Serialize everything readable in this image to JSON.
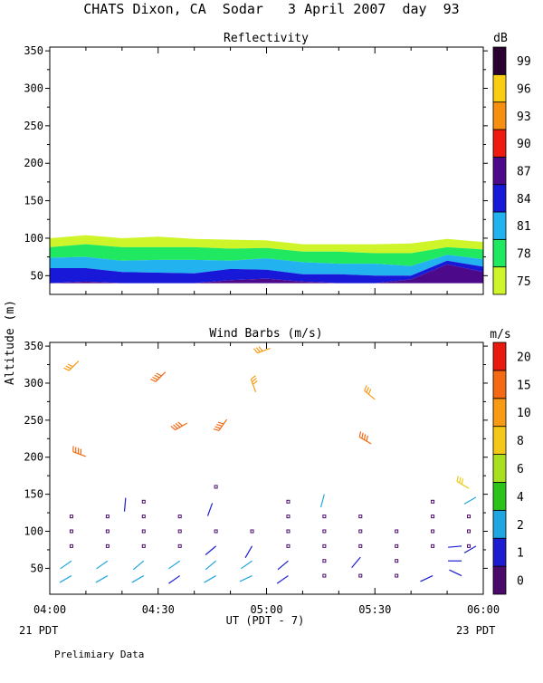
{
  "header": {
    "title": "CHATS Dixon, CA  Sodar   3 April 2007  day  93"
  },
  "footer": {
    "left_date": "21 PDT",
    "right_date": "23 PDT",
    "xlabel": "UT  (PDT - 7)",
    "note": "Prelimiary Data"
  },
  "shared_axis": {
    "ylabel": "Altitude (m)",
    "x_ticks": [
      "04:00",
      "04:30",
      "05:00",
      "05:30",
      "06:00"
    ],
    "x_range_min": [
      240,
      360
    ]
  },
  "colors": {
    "refl": [
      "#cdf52a",
      "#20e860",
      "#23b2f0",
      "#1818d8",
      "#4c0a8a",
      "#ee1c10",
      "#f78f10",
      "#f8cd14",
      "#2a0030"
    ],
    "wind": [
      "#4a0a6a",
      "#1c1cd0",
      "#1fa6e0",
      "#2cc21c",
      "#a8e020",
      "#f4c818",
      "#f89a14",
      "#f46a14",
      "#e81a10"
    ]
  },
  "chart_data": [
    {
      "type": "heatmap",
      "title": "Reflectivity",
      "ylabel": "Altitude (m)",
      "ylim": [
        25,
        355
      ],
      "yticks": [
        50,
        100,
        150,
        200,
        250,
        300,
        350
      ],
      "colorbar": {
        "unit": "dB",
        "labels": [
          "75",
          "78",
          "81",
          "84",
          "87",
          "90",
          "93",
          "96",
          "99"
        ]
      },
      "times_min": [
        240,
        250,
        260,
        270,
        280,
        290,
        300,
        310,
        320,
        330,
        340,
        350,
        360
      ],
      "bottom_altitude": 40,
      "layers": [
        {
          "dB": 75,
          "top": [
            100,
            104,
            100,
            102,
            99,
            98,
            97,
            92,
            92,
            92,
            93,
            99,
            95
          ]
        },
        {
          "dB": 78,
          "top": [
            88,
            92,
            88,
            88,
            88,
            86,
            87,
            82,
            82,
            80,
            80,
            88,
            85
          ]
        },
        {
          "dB": 81,
          "top": [
            74,
            75,
            70,
            71,
            71,
            70,
            73,
            68,
            66,
            66,
            63,
            78,
            72
          ]
        },
        {
          "dB": 84,
          "top": [
            60,
            60,
            55,
            54,
            53,
            59,
            58,
            52,
            52,
            50,
            50,
            70,
            62
          ]
        },
        {
          "dB": 87,
          "top": [
            40,
            42,
            40,
            40,
            40,
            44,
            46,
            42,
            40,
            40,
            45,
            65,
            55
          ]
        }
      ]
    },
    {
      "type": "scatter",
      "title": "Wind Barbs (m/s)",
      "ylabel": "Altitude (m)",
      "ylim": [
        15,
        355
      ],
      "yticks": [
        50,
        100,
        150,
        200,
        250,
        300,
        350
      ],
      "colorbar": {
        "unit": "m/s",
        "labels": [
          "0",
          "1",
          "2",
          "4",
          "6",
          "8",
          "10",
          "15",
          "20"
        ]
      },
      "calm_points": [
        [
          246,
          120
        ],
        [
          246,
          100
        ],
        [
          246,
          80
        ],
        [
          256,
          120
        ],
        [
          256,
          100
        ],
        [
          256,
          80
        ],
        [
          266,
          140
        ],
        [
          266,
          120
        ],
        [
          266,
          100
        ],
        [
          266,
          80
        ],
        [
          276,
          120
        ],
        [
          276,
          100
        ],
        [
          276,
          80
        ],
        [
          286,
          160
        ],
        [
          286,
          100
        ],
        [
          296,
          100
        ],
        [
          306,
          140
        ],
        [
          306,
          120
        ],
        [
          306,
          100
        ],
        [
          306,
          80
        ],
        [
          316,
          120
        ],
        [
          316,
          100
        ],
        [
          316,
          80
        ],
        [
          316,
          60
        ],
        [
          316,
          40
        ],
        [
          326,
          120
        ],
        [
          326,
          100
        ],
        [
          326,
          80
        ],
        [
          326,
          40
        ],
        [
          336,
          100
        ],
        [
          336,
          80
        ],
        [
          336,
          60
        ],
        [
          336,
          40
        ],
        [
          346,
          140
        ],
        [
          346,
          120
        ],
        [
          346,
          100
        ],
        [
          346,
          80
        ],
        [
          356,
          120
        ],
        [
          356,
          100
        ],
        [
          356,
          80
        ]
      ],
      "barbs": [
        {
          "t": 248,
          "alt": 330,
          "dir": 225,
          "spd": 10
        },
        {
          "t": 272,
          "alt": 315,
          "dir": 225,
          "spd": 15
        },
        {
          "t": 301,
          "alt": 347,
          "dir": 250,
          "spd": 10
        },
        {
          "t": 297,
          "alt": 288,
          "dir": 340,
          "spd": 10
        },
        {
          "t": 278,
          "alt": 246,
          "dir": 240,
          "spd": 15
        },
        {
          "t": 289,
          "alt": 251,
          "dir": 215,
          "spd": 15
        },
        {
          "t": 330,
          "alt": 278,
          "dir": 310,
          "spd": 10
        },
        {
          "t": 250,
          "alt": 201,
          "dir": 290,
          "spd": 15
        },
        {
          "t": 329,
          "alt": 218,
          "dir": 300,
          "spd": 15
        },
        {
          "t": 356,
          "alt": 158,
          "dir": 300,
          "spd": 8
        },
        {
          "t": 261,
          "alt": 145,
          "dir": 185,
          "spd": 1
        },
        {
          "t": 285,
          "alt": 138,
          "dir": 200,
          "spd": 1
        },
        {
          "t": 316,
          "alt": 150,
          "dir": 195,
          "spd": 2
        },
        {
          "t": 358,
          "alt": 146,
          "dir": 240,
          "spd": 2
        },
        {
          "t": 286,
          "alt": 80,
          "dir": 230,
          "spd": 1
        },
        {
          "t": 296,
          "alt": 80,
          "dir": 210,
          "spd": 1
        },
        {
          "t": 326,
          "alt": 65,
          "dir": 220,
          "spd": 1
        },
        {
          "t": 354,
          "alt": 80,
          "dir": 265,
          "spd": 1
        },
        {
          "t": 358,
          "alt": 80,
          "dir": 240,
          "spd": 1
        },
        {
          "t": 246,
          "alt": 60,
          "dir": 235,
          "spd": 2
        },
        {
          "t": 256,
          "alt": 60,
          "dir": 235,
          "spd": 2
        },
        {
          "t": 266,
          "alt": 60,
          "dir": 230,
          "spd": 2
        },
        {
          "t": 276,
          "alt": 60,
          "dir": 235,
          "spd": 2
        },
        {
          "t": 286,
          "alt": 60,
          "dir": 230,
          "spd": 2
        },
        {
          "t": 296,
          "alt": 60,
          "dir": 235,
          "spd": 2
        },
        {
          "t": 306,
          "alt": 60,
          "dir": 230,
          "spd": 1
        },
        {
          "t": 354,
          "alt": 60,
          "dir": 270,
          "spd": 1
        },
        {
          "t": 246,
          "alt": 40,
          "dir": 240,
          "spd": 2
        },
        {
          "t": 256,
          "alt": 40,
          "dir": 240,
          "spd": 2
        },
        {
          "t": 266,
          "alt": 40,
          "dir": 240,
          "spd": 2
        },
        {
          "t": 276,
          "alt": 40,
          "dir": 235,
          "spd": 1
        },
        {
          "t": 286,
          "alt": 40,
          "dir": 240,
          "spd": 2
        },
        {
          "t": 296,
          "alt": 40,
          "dir": 245,
          "spd": 2
        },
        {
          "t": 306,
          "alt": 40,
          "dir": 235,
          "spd": 1
        },
        {
          "t": 346,
          "alt": 40,
          "dir": 245,
          "spd": 1
        },
        {
          "t": 354,
          "alt": 40,
          "dir": 295,
          "spd": 1
        }
      ]
    }
  ]
}
